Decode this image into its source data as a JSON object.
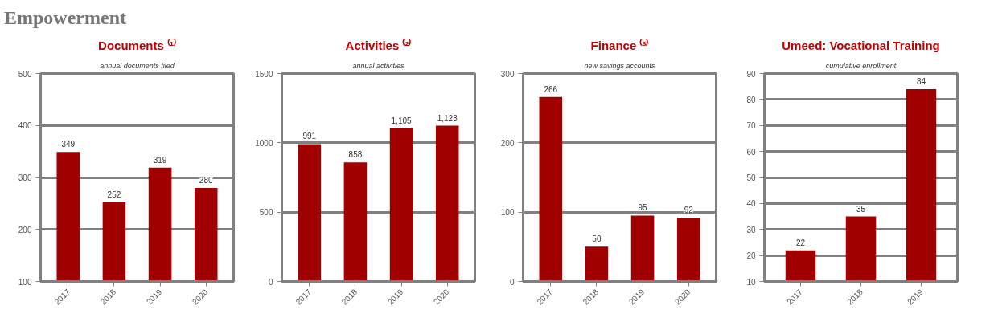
{
  "chart_data": [
    {
      "type": "bar",
      "title": "Documents ⁽¹⁾",
      "subtitle": "annual documents filed",
      "annotations": [
        "Empowerment"
      ],
      "categories": [
        "2017",
        "2018",
        "2019",
        "2020"
      ],
      "values": [
        349,
        252,
        319,
        280
      ],
      "value_labels": [
        "349",
        "252",
        "319",
        "280"
      ],
      "color": "#a00000",
      "ylim": [
        100,
        500
      ],
      "yticks": [
        100,
        200,
        300,
        400,
        500
      ],
      "grid": "y"
    },
    {
      "type": "bar",
      "title": "Activities ⁽²⁾",
      "subtitle": "annual activities",
      "categories": [
        "2017",
        "2018",
        "2019",
        "2020"
      ],
      "values": [
        991,
        858,
        1105,
        1123
      ],
      "value_labels": [
        "991",
        "858",
        "1,105",
        "1,123"
      ],
      "color": "#a00000",
      "ylim": [
        0,
        1500
      ],
      "yticks": [
        0,
        500,
        1000,
        1500
      ],
      "grid": "y"
    },
    {
      "type": "bar",
      "title": "Finance ⁽³⁾",
      "subtitle": "new savings accounts",
      "categories": [
        "2017",
        "2018",
        "2019",
        "2020"
      ],
      "values": [
        266,
        50,
        95,
        92
      ],
      "value_labels": [
        "266",
        "50",
        "95",
        "92"
      ],
      "color": "#a00000",
      "ylim": [
        0,
        300
      ],
      "yticks": [
        0,
        100,
        200,
        300
      ],
      "grid": "y"
    },
    {
      "type": "bar",
      "title": "Umeed: Vocational Training",
      "subtitle": "cumulative enrollment",
      "categories": [
        "2017",
        "2018",
        "2019"
      ],
      "values": [
        22,
        35,
        84
      ],
      "value_labels": [
        "22",
        "35",
        "84"
      ],
      "color": "#a00000",
      "ylim": [
        10,
        90
      ],
      "yticks": [
        10,
        20,
        30,
        40,
        50,
        60,
        70,
        80,
        90
      ],
      "grid": "y"
    }
  ]
}
